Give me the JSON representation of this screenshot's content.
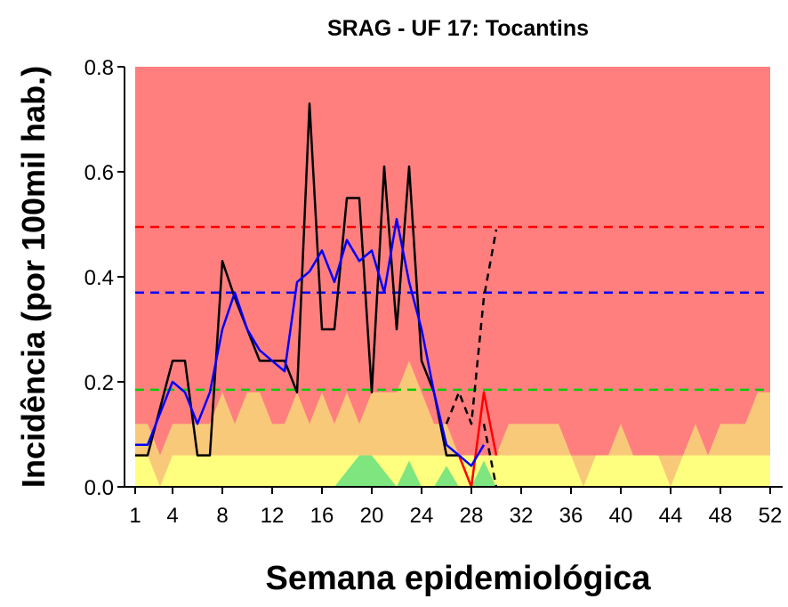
{
  "chart_data": {
    "type": "line",
    "title": "SRAG - UF 17: Tocantins",
    "x_label": "Semana epidemiológica",
    "y_label": "Incidência (por 100mil hab.)",
    "xlim": [
      1,
      52
    ],
    "ylim": [
      0,
      0.8
    ],
    "xticks": [
      1,
      4,
      8,
      12,
      16,
      20,
      24,
      28,
      32,
      36,
      40,
      44,
      48,
      52
    ],
    "yticks": [
      {
        "value": 0,
        "label": "0.0"
      },
      0.2,
      0.4,
      0.6,
      0.8
    ],
    "background_color": "#ff7f7f",
    "x": [
      1,
      2,
      3,
      4,
      5,
      6,
      7,
      8,
      9,
      10,
      11,
      12,
      13,
      14,
      15,
      16,
      17,
      18,
      19,
      20,
      21,
      22,
      23,
      24,
      25,
      26,
      27,
      28,
      29,
      30,
      31,
      32,
      33,
      34,
      35,
      36,
      37,
      38,
      39,
      40,
      41,
      42,
      43,
      44,
      45,
      46,
      47,
      48,
      49,
      50,
      51,
      52
    ],
    "areas": [
      {
        "color": "#f9c97a",
        "values": [
          0.12,
          0.12,
          0.06,
          0.12,
          0.12,
          0.12,
          0.12,
          0.18,
          0.12,
          0.18,
          0.18,
          0.12,
          0.12,
          0.18,
          0.12,
          0.18,
          0.12,
          0.18,
          0.12,
          0.18,
          0.18,
          0.18,
          0.24,
          0.18,
          0.12,
          0.12,
          0.06,
          0.06,
          0.06,
          0.06,
          0.12,
          0.12,
          0.12,
          0.12,
          0.12,
          0.06,
          0.06,
          0.06,
          0.06,
          0.12,
          0.06,
          0.06,
          0.06,
          0.06,
          0.06,
          0.12,
          0.06,
          0.12,
          0.12,
          0.12,
          0.18,
          0.18
        ]
      },
      {
        "color": "#ffff7f",
        "values": [
          0.06,
          0.06,
          0,
          0.06,
          0.06,
          0.06,
          0.06,
          0.06,
          0.06,
          0.06,
          0.06,
          0.06,
          0.06,
          0.06,
          0.06,
          0.06,
          0.06,
          0.06,
          0.06,
          0.06,
          0.06,
          0.06,
          0.06,
          0.06,
          0.06,
          0.06,
          0.06,
          0.06,
          0.06,
          0.06,
          0.06,
          0.06,
          0.06,
          0.06,
          0.06,
          0.06,
          0,
          0.06,
          0.06,
          0.06,
          0.06,
          0.06,
          0.06,
          0,
          0.06,
          0.06,
          0.06,
          0.06,
          0.06,
          0.06,
          0.06,
          0.06
        ]
      },
      {
        "color": "#7fe57f",
        "values": [
          0,
          0,
          0,
          0,
          0,
          0,
          0,
          0,
          0,
          0,
          0,
          0,
          0,
          0,
          0,
          0,
          0,
          0.03,
          0.06,
          0.06,
          0.03,
          0,
          0.05,
          0,
          0,
          0.04,
          0,
          0,
          0.05,
          0,
          0,
          0,
          0,
          0,
          0,
          0,
          0,
          0,
          0,
          0,
          0,
          0,
          0,
          0,
          0,
          0,
          0,
          0,
          0,
          0,
          0,
          0
        ]
      }
    ],
    "hlines": [
      {
        "value": 0.495,
        "color": "#ff0000"
      },
      {
        "value": 0.37,
        "color": "#0000ff"
      },
      {
        "value": 0.185,
        "color": "#00cc00"
      }
    ],
    "series": [
      {
        "color": "#000000",
        "dash": false,
        "values": [
          0.06,
          0.06,
          0.15,
          0.24,
          0.24,
          0.06,
          0.06,
          0.43,
          0.36,
          0.3,
          0.24,
          0.24,
          0.24,
          0.18,
          0.73,
          0.3,
          0.3,
          0.55,
          0.55,
          0.18,
          0.61,
          0.3,
          0.61,
          0.24,
          0.18,
          0.06,
          0.06,
          null,
          null,
          null,
          null,
          null,
          null,
          null,
          null,
          null,
          null,
          null,
          null,
          null,
          null,
          null,
          null,
          null,
          null,
          null,
          null,
          null,
          null,
          null,
          null,
          null
        ]
      },
      {
        "color": "#ff0000",
        "dash": false,
        "values": [
          null,
          null,
          null,
          null,
          null,
          null,
          null,
          null,
          null,
          null,
          null,
          null,
          null,
          null,
          null,
          null,
          null,
          null,
          null,
          null,
          null,
          null,
          null,
          null,
          null,
          null,
          0.06,
          0,
          0.18,
          0.06,
          null,
          null,
          null,
          null,
          null,
          null,
          null,
          null,
          null,
          null,
          null,
          null,
          null,
          null,
          null,
          null,
          null,
          null,
          null,
          null,
          null,
          null
        ]
      },
      {
        "color": "#000000",
        "dash": true,
        "values": [
          null,
          null,
          null,
          null,
          null,
          null,
          null,
          null,
          null,
          null,
          null,
          null,
          null,
          null,
          null,
          null,
          null,
          null,
          null,
          null,
          null,
          null,
          null,
          null,
          null,
          0.12,
          0.18,
          0.12,
          0.36,
          0.49,
          null,
          null,
          null,
          null,
          null,
          null,
          null,
          null,
          null,
          null,
          null,
          null,
          null,
          null,
          null,
          null,
          null,
          null,
          null,
          null,
          null,
          null
        ]
      },
      {
        "color": "#000000",
        "dash": true,
        "values": [
          null,
          null,
          null,
          null,
          null,
          null,
          null,
          null,
          null,
          null,
          null,
          null,
          null,
          null,
          null,
          null,
          null,
          null,
          null,
          null,
          null,
          null,
          null,
          null,
          null,
          null,
          null,
          null,
          0.12,
          0,
          null,
          null,
          null,
          null,
          null,
          null,
          null,
          null,
          null,
          null,
          null,
          null,
          null,
          null,
          null,
          null,
          null,
          null,
          null,
          null,
          null,
          null
        ]
      },
      {
        "color": "#0000ff",
        "dash": false,
        "values": [
          0.08,
          0.08,
          0.14,
          0.2,
          0.18,
          0.12,
          0.18,
          0.3,
          0.37,
          0.3,
          0.26,
          0.24,
          0.22,
          0.39,
          0.41,
          0.45,
          0.39,
          0.47,
          0.43,
          0.45,
          0.37,
          0.51,
          0.39,
          0.3,
          0.18,
          0.08,
          0.06,
          0.04,
          0.08,
          null,
          null,
          null,
          null,
          null,
          null,
          null,
          null,
          null,
          null,
          null,
          null,
          null,
          null,
          null,
          null,
          null,
          null,
          null,
          null,
          null,
          null,
          null
        ]
      }
    ]
  }
}
